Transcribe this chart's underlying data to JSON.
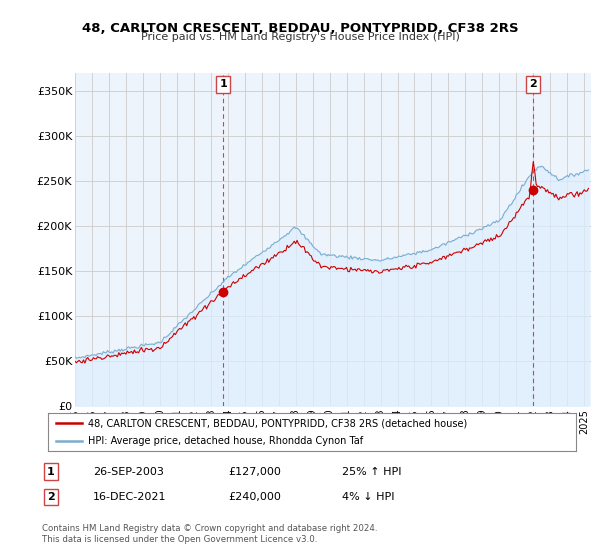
{
  "title": "48, CARLTON CRESCENT, BEDDAU, PONTYPRIDD, CF38 2RS",
  "subtitle": "Price paid vs. HM Land Registry's House Price Index (HPI)",
  "ylim": [
    0,
    370000
  ],
  "yticks": [
    0,
    50000,
    100000,
    150000,
    200000,
    250000,
    300000,
    350000
  ],
  "ytick_labels": [
    "£0",
    "£50K",
    "£100K",
    "£150K",
    "£200K",
    "£250K",
    "£300K",
    "£350K"
  ],
  "sale1_date": "26-SEP-2003",
  "sale1_price": 127000,
  "sale1_hpi_pct": "25% ↑ HPI",
  "sale2_date": "16-DEC-2021",
  "sale2_price": 240000,
  "sale2_hpi_pct": "4% ↓ HPI",
  "line_red": "#cc0000",
  "line_blue": "#7aadcf",
  "fill_blue": "#ddeeff",
  "vline_color": "#cc4444",
  "legend_label1": "48, CARLTON CRESCENT, BEDDAU, PONTYPRIDD, CF38 2RS (detached house)",
  "legend_label2": "HPI: Average price, detached house, Rhondda Cynon Taf",
  "footer1": "Contains HM Land Registry data © Crown copyright and database right 2024.",
  "footer2": "This data is licensed under the Open Government Licence v3.0.",
  "background_color": "#ffffff",
  "plot_bg_color": "#eef4fb",
  "grid_color": "#cccccc",
  "sale1_x": 2003.74,
  "sale2_x": 2021.96
}
